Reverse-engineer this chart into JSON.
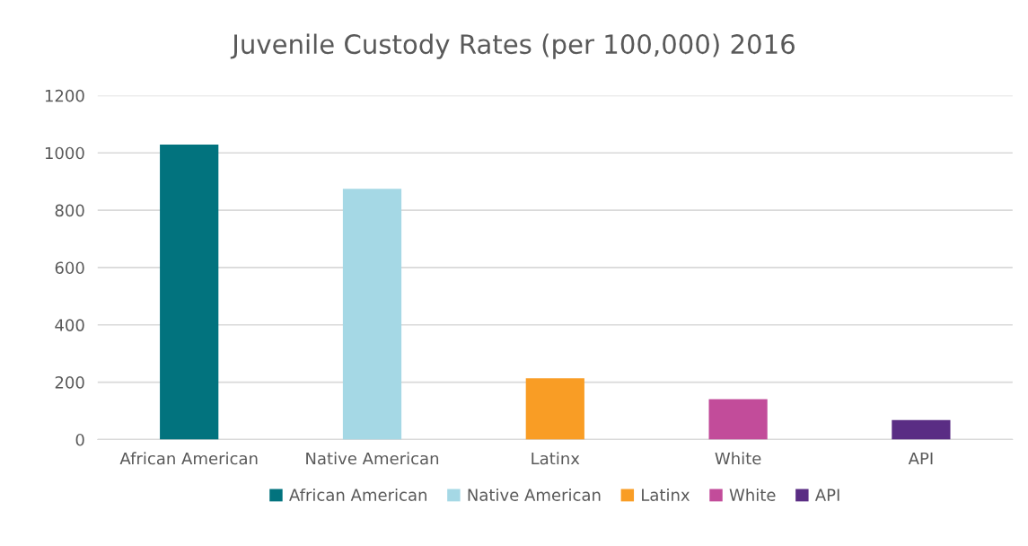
{
  "chart_data": {
    "type": "bar",
    "title": "Juvenile Custody Rates (per 100,000) 2016",
    "categories": [
      "African American",
      "Native American",
      "Latinx",
      "White",
      "API"
    ],
    "series": [
      {
        "name": "African American",
        "color": "#02737e",
        "values": [
          1029,
          null,
          null,
          null,
          null
        ]
      },
      {
        "name": "Native American",
        "color": "#a5d8e5",
        "values": [
          null,
          875,
          null,
          null,
          null
        ]
      },
      {
        "name": "Latinx",
        "color": "#f99d25",
        "values": [
          null,
          null,
          214,
          null,
          null
        ]
      },
      {
        "name": "White",
        "color": "#c24c9a",
        "values": [
          null,
          null,
          null,
          141,
          null
        ]
      },
      {
        "name": "API",
        "color": "#5a2d84",
        "values": [
          null,
          null,
          null,
          null,
          68
        ]
      }
    ],
    "ylim": [
      0,
      1200
    ],
    "yticks": [
      0,
      200,
      400,
      600,
      800,
      1000,
      1200
    ],
    "grid": "y",
    "legend": "bottom"
  }
}
